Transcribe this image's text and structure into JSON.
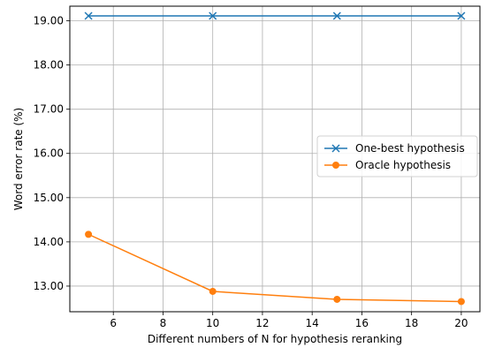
{
  "chart_data": {
    "type": "line",
    "title": "",
    "xlabel": "Different numbers of N for hypothesis reranking",
    "ylabel": "Word error rate (%)",
    "xlim": [
      4.25,
      20.75
    ],
    "ylim": [
      12.42,
      19.33
    ],
    "x_ticks": [
      6,
      8,
      10,
      12,
      14,
      16,
      18,
      20
    ],
    "x_tick_labels": [
      "6",
      "8",
      "10",
      "12",
      "14",
      "16",
      "18",
      "20"
    ],
    "y_ticks": [
      13,
      14,
      15,
      16,
      17,
      18,
      19
    ],
    "y_tick_labels": [
      "13.00",
      "14.00",
      "15.00",
      "16.00",
      "17.00",
      "18.00",
      "19.00"
    ],
    "grid": true,
    "legend_position": "center-right",
    "series": [
      {
        "name": "One-best hypothesis",
        "color": "#1f77b4",
        "marker": "x",
        "x": [
          5,
          10,
          15,
          20
        ],
        "values": [
          19.11,
          19.11,
          19.11,
          19.11
        ]
      },
      {
        "name": "Oracle hypothesis",
        "color": "#ff7f0e",
        "marker": "circle",
        "x": [
          5,
          10,
          15,
          20
        ],
        "values": [
          14.17,
          12.88,
          12.7,
          12.65
        ]
      }
    ]
  }
}
